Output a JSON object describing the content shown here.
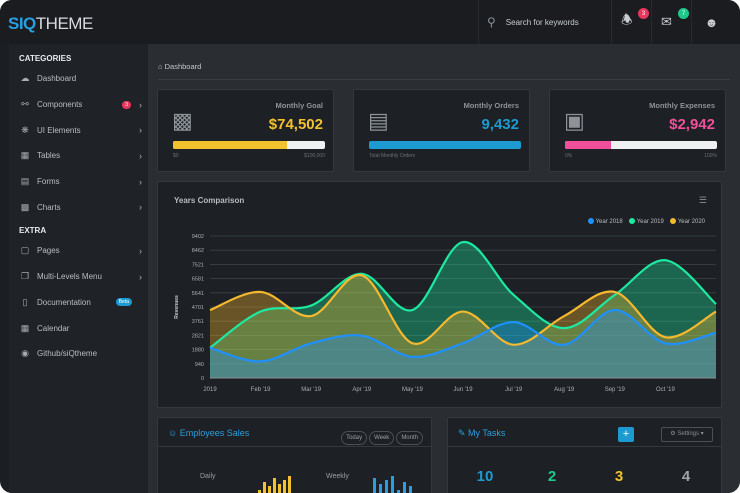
{
  "header": {
    "logo_strong": "SIQ",
    "logo_rest": "THEME",
    "search_placeholder": "Search for keywords",
    "notifications_count": "3",
    "messages_count": "7"
  },
  "sidebar": {
    "categories_title": "CATEGORIES",
    "extra_title": "EXTRA",
    "items": [
      {
        "label": "Dashboard",
        "icon": "dashboard-icon"
      },
      {
        "label": "Components",
        "icon": "plug-icon",
        "badge": "3",
        "chevron": true
      },
      {
        "label": "UI Elements",
        "icon": "palette-icon",
        "chevron": true
      },
      {
        "label": "Tables",
        "icon": "table-icon",
        "chevron": true
      },
      {
        "label": "Forms",
        "icon": "forms-icon",
        "chevron": true
      },
      {
        "label": "Charts",
        "icon": "chart-icon",
        "chevron": true
      }
    ],
    "extra_items": [
      {
        "label": "Pages",
        "icon": "page-icon",
        "chevron": true
      },
      {
        "label": "Multi-Levels Menu",
        "icon": "layers-icon",
        "chevron": true
      },
      {
        "label": "Documentation",
        "icon": "book-icon",
        "badge": "Beta"
      },
      {
        "label": "Calendar",
        "icon": "calendar-icon"
      },
      {
        "label": "Github/siQtheme",
        "icon": "github-icon"
      }
    ]
  },
  "breadcrumb": "Dashboard",
  "stats": [
    {
      "label": "Monthly Goal",
      "value": "$74,502",
      "color": "#f2c12e",
      "progress": 0.75,
      "left": "$0",
      "right": "$100,000"
    },
    {
      "label": "Monthly Orders",
      "value": "9,432",
      "color": "#1d9bd1",
      "progress": 1.0,
      "left": "Total Monthly Orders",
      "right": ""
    },
    {
      "label": "Monthly Expenses",
      "value": "$2,942",
      "color": "#f0509b",
      "progress": 0.3,
      "left": "0%",
      "right": "100%"
    }
  ],
  "chart_data": {
    "type": "area",
    "title": "Years Comparison",
    "ylabel": "Revenues",
    "ylim": [
      0,
      9402
    ],
    "yticks": [
      "0",
      "940",
      "1880",
      "2821",
      "3761",
      "4701",
      "5641",
      "6581",
      "7521",
      "8462",
      "9402"
    ],
    "categories": [
      "2019",
      "Feb '19",
      "Mar '19",
      "Apr '19",
      "May '19",
      "Jun '19",
      "Jul '19",
      "Aug '19",
      "Sep '19",
      "Oct '19",
      ""
    ],
    "grid": true,
    "legend": "top-right",
    "series": [
      {
        "name": "Year 2018",
        "color": "#1e90ff",
        "values": [
          2000,
          1100,
          2300,
          2800,
          1400,
          2300,
          3700,
          2200,
          4500,
          2300,
          3000
        ]
      },
      {
        "name": "Year 2019",
        "color": "#1de9a0",
        "values": [
          2000,
          4400,
          4800,
          6900,
          4500,
          9000,
          5500,
          3300,
          5500,
          7800,
          4900
        ]
      },
      {
        "name": "Year 2020",
        "color": "#f5b82e",
        "values": [
          4500,
          5700,
          4100,
          6800,
          2300,
          4400,
          2200,
          4100,
          5700,
          2700,
          4400
        ]
      }
    ]
  },
  "employees": {
    "title": "Employees Sales",
    "filters": [
      "Today",
      "Week",
      "Month"
    ],
    "daily": "Daily",
    "weekly": "Weekly"
  },
  "tasks": {
    "title": "My Tasks",
    "add": "+",
    "settings": "Settings",
    "counts": [
      "10",
      "2",
      "3",
      "4"
    ],
    "count_colors": [
      "#1d9bd1",
      "#1dc98a",
      "#f2c12e",
      "#a0a6ac"
    ]
  }
}
